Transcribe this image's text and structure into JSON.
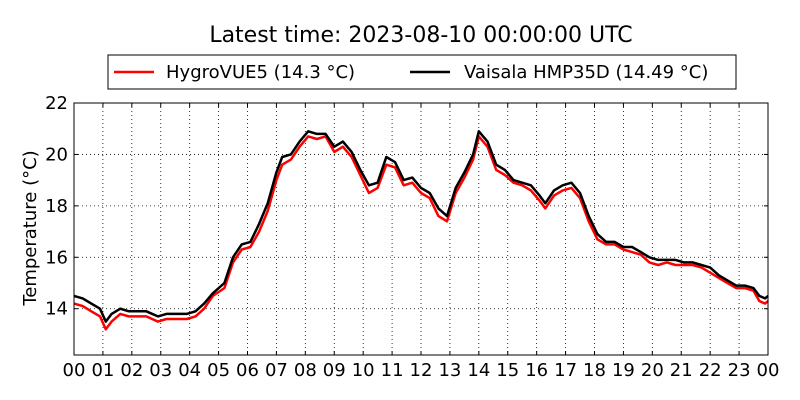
{
  "chart_data": {
    "type": "line",
    "title": "Latest time: 2023-08-10 00:00:00 UTC",
    "xlabel": "",
    "ylabel": "Temperature (°C)",
    "x_unit": "hour (UTC)",
    "xlim": [
      0,
      24
    ],
    "ylim": [
      12.2,
      22
    ],
    "x_ticks": [
      0,
      1,
      2,
      3,
      4,
      5,
      6,
      7,
      8,
      9,
      10,
      11,
      12,
      13,
      14,
      15,
      16,
      17,
      18,
      19,
      20,
      21,
      22,
      23,
      24
    ],
    "x_tick_labels": [
      "00",
      "01",
      "02",
      "03",
      "04",
      "05",
      "06",
      "07",
      "08",
      "09",
      "10",
      "11",
      "12",
      "13",
      "14",
      "15",
      "16",
      "17",
      "18",
      "19",
      "20",
      "21",
      "22",
      "23",
      "00"
    ],
    "y_ticks": [
      14,
      16,
      18,
      20,
      22
    ],
    "y_tick_labels": [
      "14",
      "16",
      "18",
      "20",
      "22"
    ],
    "grid": true,
    "legend_position": "top",
    "series": [
      {
        "name": "HygroVUE5 (14.3 °C)",
        "color": "#ff0000",
        "points": [
          [
            0,
            14.2
          ],
          [
            0.3,
            14.1
          ],
          [
            0.6,
            13.9
          ],
          [
            0.9,
            13.7
          ],
          [
            1.1,
            13.2
          ],
          [
            1.3,
            13.5
          ],
          [
            1.6,
            13.8
          ],
          [
            1.9,
            13.7
          ],
          [
            2.2,
            13.7
          ],
          [
            2.5,
            13.7
          ],
          [
            2.9,
            13.5
          ],
          [
            3.2,
            13.6
          ],
          [
            3.5,
            13.6
          ],
          [
            3.9,
            13.6
          ],
          [
            4.2,
            13.7
          ],
          [
            4.5,
            14.0
          ],
          [
            4.8,
            14.5
          ],
          [
            5.2,
            14.8
          ],
          [
            5.5,
            15.8
          ],
          [
            5.8,
            16.3
          ],
          [
            6.1,
            16.4
          ],
          [
            6.4,
            17.0
          ],
          [
            6.7,
            17.8
          ],
          [
            7.0,
            19.0
          ],
          [
            7.2,
            19.6
          ],
          [
            7.5,
            19.8
          ],
          [
            7.8,
            20.3
          ],
          [
            8.1,
            20.7
          ],
          [
            8.4,
            20.6
          ],
          [
            8.7,
            20.7
          ],
          [
            9.0,
            20.1
          ],
          [
            9.3,
            20.3
          ],
          [
            9.6,
            19.9
          ],
          [
            9.9,
            19.2
          ],
          [
            10.2,
            18.5
          ],
          [
            10.5,
            18.7
          ],
          [
            10.8,
            19.6
          ],
          [
            11.1,
            19.5
          ],
          [
            11.4,
            18.8
          ],
          [
            11.7,
            18.9
          ],
          [
            12.0,
            18.5
          ],
          [
            12.3,
            18.3
          ],
          [
            12.6,
            17.6
          ],
          [
            12.9,
            17.4
          ],
          [
            13.2,
            18.5
          ],
          [
            13.5,
            19.1
          ],
          [
            13.8,
            19.8
          ],
          [
            14.0,
            20.7
          ],
          [
            14.3,
            20.3
          ],
          [
            14.6,
            19.4
          ],
          [
            14.9,
            19.2
          ],
          [
            15.2,
            18.9
          ],
          [
            15.5,
            18.8
          ],
          [
            15.8,
            18.6
          ],
          [
            16.1,
            18.2
          ],
          [
            16.3,
            17.9
          ],
          [
            16.6,
            18.4
          ],
          [
            16.9,
            18.6
          ],
          [
            17.2,
            18.7
          ],
          [
            17.5,
            18.3
          ],
          [
            17.8,
            17.4
          ],
          [
            18.1,
            16.7
          ],
          [
            18.4,
            16.5
          ],
          [
            18.7,
            16.5
          ],
          [
            19.0,
            16.3
          ],
          [
            19.3,
            16.2
          ],
          [
            19.6,
            16.1
          ],
          [
            19.9,
            15.8
          ],
          [
            20.2,
            15.7
          ],
          [
            20.5,
            15.8
          ],
          [
            20.8,
            15.7
          ],
          [
            21.1,
            15.7
          ],
          [
            21.4,
            15.7
          ],
          [
            21.7,
            15.6
          ],
          [
            22.0,
            15.4
          ],
          [
            22.3,
            15.2
          ],
          [
            22.6,
            15.0
          ],
          [
            22.9,
            14.8
          ],
          [
            23.2,
            14.8
          ],
          [
            23.5,
            14.7
          ],
          [
            23.7,
            14.3
          ],
          [
            23.9,
            14.2
          ],
          [
            24.0,
            14.3
          ]
        ]
      },
      {
        "name": "Vaisala HMP35D (14.49 °C)",
        "color": "#000000",
        "points": [
          [
            0,
            14.5
          ],
          [
            0.3,
            14.4
          ],
          [
            0.6,
            14.2
          ],
          [
            0.9,
            14.0
          ],
          [
            1.1,
            13.5
          ],
          [
            1.3,
            13.8
          ],
          [
            1.6,
            14.0
          ],
          [
            1.9,
            13.9
          ],
          [
            2.2,
            13.9
          ],
          [
            2.5,
            13.9
          ],
          [
            2.9,
            13.7
          ],
          [
            3.2,
            13.8
          ],
          [
            3.5,
            13.8
          ],
          [
            3.9,
            13.8
          ],
          [
            4.2,
            13.9
          ],
          [
            4.5,
            14.2
          ],
          [
            4.8,
            14.6
          ],
          [
            5.2,
            15.0
          ],
          [
            5.5,
            16.0
          ],
          [
            5.8,
            16.5
          ],
          [
            6.1,
            16.6
          ],
          [
            6.4,
            17.3
          ],
          [
            6.7,
            18.1
          ],
          [
            7.0,
            19.3
          ],
          [
            7.2,
            19.9
          ],
          [
            7.5,
            20.0
          ],
          [
            7.8,
            20.5
          ],
          [
            8.1,
            20.9
          ],
          [
            8.4,
            20.8
          ],
          [
            8.7,
            20.8
          ],
          [
            9.0,
            20.3
          ],
          [
            9.3,
            20.5
          ],
          [
            9.6,
            20.1
          ],
          [
            9.9,
            19.4
          ],
          [
            10.2,
            18.8
          ],
          [
            10.5,
            18.9
          ],
          [
            10.8,
            19.9
          ],
          [
            11.1,
            19.7
          ],
          [
            11.4,
            19.0
          ],
          [
            11.7,
            19.1
          ],
          [
            12.0,
            18.7
          ],
          [
            12.3,
            18.5
          ],
          [
            12.6,
            17.9
          ],
          [
            12.9,
            17.6
          ],
          [
            13.2,
            18.7
          ],
          [
            13.5,
            19.3
          ],
          [
            13.8,
            20.0
          ],
          [
            14.0,
            20.9
          ],
          [
            14.3,
            20.5
          ],
          [
            14.6,
            19.6
          ],
          [
            14.9,
            19.4
          ],
          [
            15.2,
            19.0
          ],
          [
            15.5,
            18.9
          ],
          [
            15.8,
            18.8
          ],
          [
            16.1,
            18.4
          ],
          [
            16.3,
            18.1
          ],
          [
            16.6,
            18.6
          ],
          [
            16.9,
            18.8
          ],
          [
            17.2,
            18.9
          ],
          [
            17.5,
            18.5
          ],
          [
            17.8,
            17.6
          ],
          [
            18.1,
            16.9
          ],
          [
            18.4,
            16.6
          ],
          [
            18.7,
            16.6
          ],
          [
            19.0,
            16.4
          ],
          [
            19.3,
            16.4
          ],
          [
            19.6,
            16.2
          ],
          [
            19.9,
            16.0
          ],
          [
            20.2,
            15.9
          ],
          [
            20.5,
            15.9
          ],
          [
            20.8,
            15.9
          ],
          [
            21.1,
            15.8
          ],
          [
            21.4,
            15.8
          ],
          [
            21.7,
            15.7
          ],
          [
            22.0,
            15.6
          ],
          [
            22.3,
            15.3
          ],
          [
            22.6,
            15.1
          ],
          [
            22.9,
            14.9
          ],
          [
            23.2,
            14.9
          ],
          [
            23.5,
            14.8
          ],
          [
            23.7,
            14.5
          ],
          [
            23.9,
            14.4
          ],
          [
            24.0,
            14.5
          ]
        ]
      }
    ]
  }
}
